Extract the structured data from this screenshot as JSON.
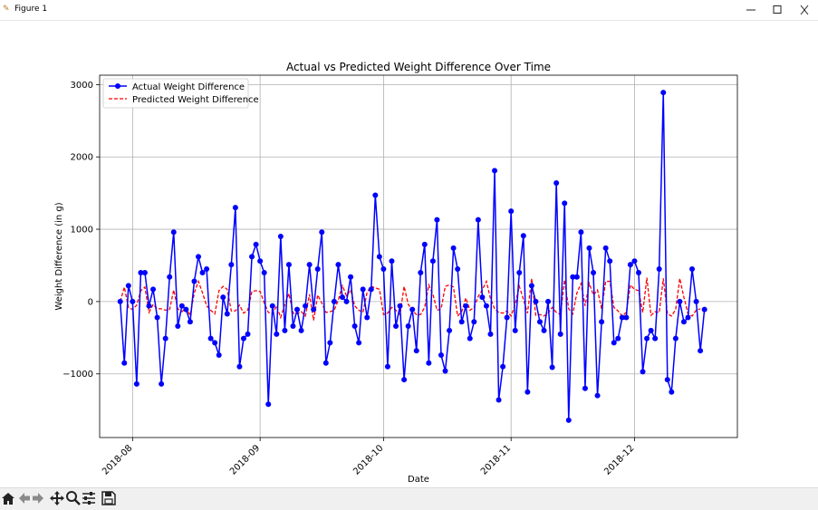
{
  "window": {
    "title": "Figure 1",
    "minimize_icon": "minimize-icon",
    "maximize_icon": "maximize-icon",
    "close_icon": "close-icon"
  },
  "toolbar": {
    "items": [
      "home-icon",
      "back-arrow-icon",
      "forward-arrow-icon",
      "pan-icon",
      "zoom-icon",
      "configure-subplots-icon",
      "save-icon"
    ]
  },
  "chart_data": {
    "type": "line",
    "title": "Actual vs Predicted Weight Difference Over Time",
    "xlabel": "Date",
    "ylabel": "Weight Difference (in g)",
    "xlim": [
      "2018-07-24",
      "2018-12-26"
    ],
    "ylim": [
      -1880,
      3130
    ],
    "x_ticks": [
      "2018-08-01",
      "2018-09-01",
      "2018-10-01",
      "2018-11-01",
      "2018-12-01"
    ],
    "x_tick_labels": [
      "2018-08",
      "2018-09",
      "2018-10",
      "2018-11",
      "2018-12"
    ],
    "y_ticks": [
      -1000,
      0,
      1000,
      2000,
      3000
    ],
    "y_tick_labels": [
      "−1000",
      "0",
      "1000",
      "2000",
      "3000"
    ],
    "grid": true,
    "legend_position": "upper-left",
    "colors": {
      "actual": "#0000ff",
      "predicted": "#ff0000"
    },
    "x_start": "2018-07-29",
    "x_step_days": 1,
    "series": [
      {
        "name": "Actual Weight Difference",
        "style": "solid-line-circle-markers",
        "values": [
          0,
          -850,
          220,
          0,
          -1140,
          400,
          400,
          -60,
          170,
          -220,
          -1140,
          -510,
          340,
          960,
          -340,
          -60,
          -110,
          -280,
          280,
          620,
          400,
          450,
          -510,
          -570,
          -740,
          60,
          -170,
          510,
          1300,
          -900,
          -510,
          -450,
          620,
          790,
          560,
          400,
          -1420,
          -60,
          -450,
          900,
          -400,
          510,
          -340,
          -110,
          -400,
          -60,
          510,
          -110,
          450,
          960,
          -850,
          -570,
          0,
          510,
          60,
          0,
          340,
          -340,
          -570,
          170,
          -220,
          170,
          1470,
          620,
          450,
          -900,
          560,
          -340,
          -60,
          -1080,
          -340,
          -110,
          -680,
          400,
          790,
          -850,
          560,
          1130,
          -740,
          -960,
          -400,
          740,
          450,
          -280,
          -60,
          -510,
          -280,
          1130,
          60,
          -60,
          -450,
          1810,
          -1360,
          -900,
          -220,
          1250,
          -400,
          400,
          910,
          -1250,
          220,
          0,
          -280,
          -400,
          0,
          -910,
          1640,
          -450,
          1360,
          -1640,
          340,
          340,
          960,
          -1200,
          740,
          400,
          -1300,
          -280,
          740,
          560,
          -570,
          -510,
          -220,
          -220,
          510,
          560,
          400,
          -970,
          -510,
          -400,
          -510,
          450,
          2890,
          -1080,
          -1250,
          -510,
          0,
          -280,
          -220,
          450,
          0,
          -680,
          -110
        ]
      },
      {
        "name": "Predicted Weight Difference",
        "style": "dashed-line",
        "values": [
          0,
          200,
          -80,
          -110,
          -50,
          150,
          200,
          -150,
          -40,
          -100,
          -100,
          -120,
          -110,
          160,
          -100,
          -140,
          -90,
          -190,
          120,
          280,
          120,
          -60,
          -120,
          -170,
          150,
          210,
          170,
          -130,
          -130,
          -50,
          -160,
          -120,
          140,
          150,
          140,
          -20,
          -150,
          -170,
          -60,
          -220,
          -40,
          110,
          -160,
          -170,
          -140,
          -200,
          100,
          -260,
          90,
          -20,
          -150,
          -140,
          -120,
          20,
          220,
          80,
          160,
          -60,
          -120,
          -150,
          130,
          210,
          190,
          170,
          -180,
          -160,
          -80,
          -120,
          -180,
          210,
          -40,
          -120,
          -180,
          -180,
          -80,
          230,
          100,
          -120,
          -100,
          210,
          230,
          200,
          -200,
          -140,
          50,
          -120,
          -80,
          70,
          160,
          280,
          40,
          -100,
          -150,
          -160,
          -130,
          -200,
          -40,
          210,
          30,
          -160,
          320,
          -190,
          -180,
          -200,
          -160,
          -80,
          -150,
          -180,
          300,
          -100,
          -170,
          120,
          250,
          -60,
          250,
          90,
          160,
          -100,
          280,
          280,
          -80,
          -130,
          -200,
          -150,
          230,
          170,
          150,
          -150,
          330,
          -190,
          -140,
          -150,
          320,
          -170,
          -200,
          -110,
          320,
          60,
          -170,
          -200,
          -120,
          -100
        ]
      }
    ]
  }
}
